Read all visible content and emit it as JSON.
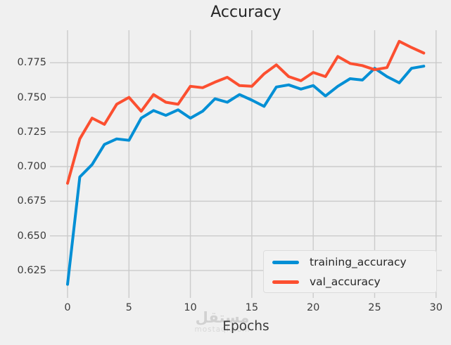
{
  "title": "Accuracy",
  "xlabel": "Epochs",
  "watermark": {
    "arabic": "مستقل",
    "domain": "mostaql.com"
  },
  "colors": {
    "background": "#f0f0f0",
    "grid": "#cbcbcb",
    "training_line": "#008fd5",
    "val_line": "#fc4f30",
    "tick_text": "#3c3c3c",
    "title_text": "#262626",
    "legend_bg": "#f2f2f2",
    "legend_border": "#dcdcdc",
    "watermark_text": "#d0d0d0"
  },
  "chart_data": {
    "type": "line",
    "title": "Accuracy",
    "xlabel": "Epochs",
    "ylabel": "",
    "grid": true,
    "legend_position": "lower right",
    "line_width": 4,
    "x": [
      0,
      1,
      2,
      3,
      4,
      5,
      6,
      7,
      8,
      9,
      10,
      11,
      12,
      13,
      14,
      15,
      16,
      17,
      18,
      19,
      20,
      21,
      22,
      23,
      24,
      25,
      26,
      27,
      28,
      29
    ],
    "series": [
      {
        "name": "training_accuracy",
        "color": "#008fd5",
        "values": [
          0.615,
          0.6925,
          0.7015,
          0.716,
          0.72,
          0.719,
          0.735,
          0.7405,
          0.737,
          0.741,
          0.735,
          0.74,
          0.749,
          0.7465,
          0.752,
          0.748,
          0.7435,
          0.7575,
          0.759,
          0.756,
          0.7585,
          0.751,
          0.758,
          0.7635,
          0.7625,
          0.771,
          0.765,
          0.7605,
          0.771,
          0.7725
        ]
      },
      {
        "name": "val_accuracy",
        "color": "#fc4f30",
        "values": [
          0.688,
          0.72,
          0.735,
          0.7305,
          0.745,
          0.75,
          0.74,
          0.752,
          0.7465,
          0.745,
          0.758,
          0.757,
          0.761,
          0.7645,
          0.7585,
          0.758,
          0.767,
          0.7735,
          0.765,
          0.762,
          0.768,
          0.765,
          0.7795,
          0.7745,
          0.773,
          0.77,
          0.7715,
          0.7905,
          0.786,
          0.782
        ]
      }
    ],
    "xlim": [
      -1.43,
      30.47
    ],
    "ylim": [
      0.6072,
      0.7985
    ],
    "xticks": [
      0,
      5,
      10,
      15,
      20,
      25,
      30
    ],
    "xtick_labels": [
      "0",
      "5",
      "10",
      "15",
      "20",
      "25",
      "30"
    ],
    "yticks": [
      0.625,
      0.65,
      0.675,
      0.7,
      0.725,
      0.75,
      0.775
    ],
    "ytick_labels": [
      "0.625",
      "0.650",
      "0.675",
      "0.700",
      "0.725",
      "0.750",
      "0.775"
    ]
  }
}
